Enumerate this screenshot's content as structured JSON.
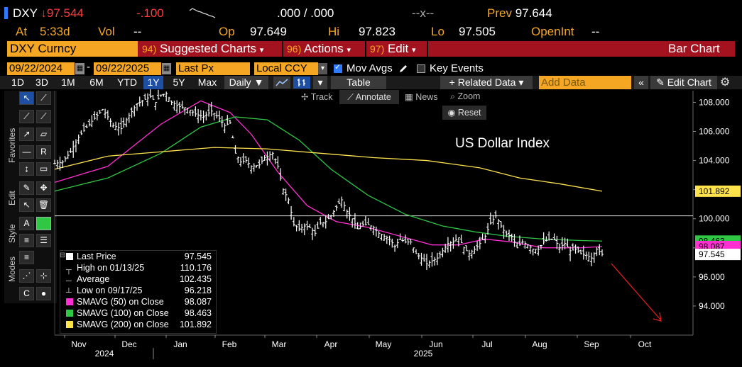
{
  "quote": {
    "ticker": "DXY",
    "arrow": "↓",
    "last": "97.544",
    "change": "-.100",
    "bid": ".000",
    "sep": "/",
    "ask": ".000",
    "size": "--x--",
    "prev_label": "Prev",
    "prev": "97.644",
    "at_label": "At",
    "time": "5:33d",
    "vol_label": "Vol",
    "vol": "--",
    "open_label": "Op",
    "open": "97.649",
    "high_label": "Hi",
    "high": "97.823",
    "low_label": "Lo",
    "low": "97.505",
    "oi_label": "OpenInt",
    "oi": "--"
  },
  "toolbar": {
    "security": "DXY Curncy",
    "suggested_num": "94)",
    "suggested": "Suggested Charts",
    "actions_num": "96)",
    "actions": "Actions",
    "edit_num": "97)",
    "edit": "Edit",
    "chart_type": "Bar Chart"
  },
  "controls": {
    "start_date": "09/22/2024",
    "end_date": "09/22/2025",
    "field": "Last Px",
    "currency": "Local CCY",
    "mov_avgs": "Mov Avgs",
    "key_events": "Key Events"
  },
  "tabs": {
    "periods": [
      "1D",
      "3D",
      "1M",
      "6M",
      "YTD",
      "1Y",
      "5Y",
      "Max"
    ],
    "selected": "1Y",
    "frequency": "Daily",
    "table": "Table",
    "related": "+ Related Data",
    "add_data_placeholder": "Add Data",
    "edit_chart": "Edit Chart"
  },
  "chart_tools": {
    "track": "Track",
    "annotate": "Annotate",
    "news": "News",
    "zoom": "Zoom",
    "reset": "Reset"
  },
  "side_labels": {
    "favorites": "Favorites",
    "edit": "Edit",
    "style": "Style",
    "modes": "Modes"
  },
  "chart_data": {
    "type": "bar",
    "title": "US Dollar Index",
    "ylim": [
      92,
      108.8
    ],
    "y_ticks": [
      "108.000",
      "106.000",
      "104.000",
      "102.000",
      "100.000",
      "98.000",
      "96.000",
      "94.000"
    ],
    "x_months": [
      "Nov",
      "Dec",
      "Jan",
      "Feb",
      "Mar",
      "Apr",
      "May",
      "Jun",
      "Jul",
      "Aug",
      "Sep",
      "Oct"
    ],
    "x_years": [
      "2024",
      "2025"
    ],
    "reference_line": 100.2,
    "price_path": [
      [
        0,
        103.8
      ],
      [
        3,
        103.9
      ],
      [
        6,
        104.6
      ],
      [
        9,
        105.6
      ],
      [
        12,
        106.3
      ],
      [
        15,
        106.9
      ],
      [
        18,
        107.5
      ],
      [
        20,
        107.0
      ],
      [
        22,
        106.4
      ],
      [
        25,
        106.2
      ],
      [
        28,
        107.1
      ],
      [
        31,
        107.9
      ],
      [
        34,
        108.2
      ],
      [
        36,
        108.4
      ],
      [
        38,
        108.0
      ],
      [
        40,
        108.5
      ],
      [
        42,
        108.6
      ],
      [
        44,
        108.0
      ],
      [
        47,
        107.7
      ],
      [
        50,
        107.6
      ],
      [
        53,
        107.2
      ],
      [
        56,
        107.0
      ],
      [
        59,
        107.4
      ],
      [
        62,
        106.9
      ],
      [
        64,
        106.4
      ],
      [
        66,
        106.6
      ],
      [
        68,
        104.5
      ],
      [
        70,
        103.9
      ],
      [
        72,
        104.0
      ],
      [
        74,
        103.6
      ],
      [
        77,
        103.7
      ],
      [
        79,
        104.2
      ],
      [
        82,
        104.5
      ],
      [
        84,
        103.6
      ],
      [
        86,
        102.0
      ],
      [
        88,
        101.3
      ],
      [
        90,
        99.6
      ],
      [
        92,
        99.3
      ],
      [
        94,
        99.5
      ],
      [
        96,
        99.4
      ],
      [
        98,
        99.0
      ],
      [
        100,
        99.7
      ],
      [
        102,
        99.8
      ],
      [
        104,
        100.2
      ],
      [
        106,
        100.8
      ],
      [
        108,
        101.3
      ],
      [
        110,
        100.5
      ],
      [
        112,
        100.0
      ],
      [
        114,
        99.3
      ],
      [
        116,
        99.6
      ],
      [
        118,
        99.6
      ],
      [
        120,
        99.4
      ],
      [
        122,
        99.0
      ],
      [
        124,
        98.8
      ],
      [
        126,
        98.6
      ],
      [
        128,
        98.1
      ],
      [
        130,
        98.6
      ],
      [
        132,
        98.4
      ],
      [
        134,
        98.4
      ],
      [
        136,
        97.6
      ],
      [
        138,
        97.3
      ],
      [
        140,
        96.9
      ],
      [
        142,
        97.1
      ],
      [
        144,
        97.3
      ],
      [
        146,
        97.8
      ],
      [
        148,
        98.3
      ],
      [
        150,
        98.4
      ],
      [
        152,
        98.7
      ],
      [
        154,
        98.0
      ],
      [
        156,
        97.6
      ],
      [
        158,
        97.9
      ],
      [
        160,
        98.3
      ],
      [
        162,
        98.8
      ],
      [
        164,
        99.7
      ],
      [
        166,
        100.2
      ],
      [
        168,
        99.5
      ],
      [
        170,
        98.9
      ],
      [
        172,
        98.8
      ],
      [
        174,
        98.0
      ],
      [
        176,
        98.4
      ],
      [
        178,
        98.2
      ],
      [
        180,
        97.9
      ],
      [
        182,
        97.9
      ],
      [
        184,
        98.4
      ],
      [
        186,
        98.6
      ],
      [
        188,
        98.6
      ],
      [
        190,
        98.0
      ],
      [
        192,
        98.3
      ],
      [
        194,
        97.8
      ],
      [
        196,
        97.9
      ],
      [
        198,
        97.6
      ],
      [
        200,
        97.5
      ],
      [
        202,
        97.3
      ],
      [
        204,
        97.9
      ],
      [
        206,
        97.55
      ]
    ],
    "series": [
      {
        "name": "SMAVG (50)  on Close",
        "color": "#ff2fd1",
        "points": [
          [
            0,
            102.5
          ],
          [
            20,
            103.6
          ],
          [
            40,
            106.5
          ],
          [
            55,
            108.1
          ],
          [
            66,
            107.3
          ],
          [
            74,
            105.8
          ],
          [
            84,
            103.2
          ],
          [
            95,
            100.9
          ],
          [
            106,
            99.8
          ],
          [
            118,
            99.4
          ],
          [
            130,
            98.8
          ],
          [
            142,
            98.2
          ],
          [
            152,
            98.2
          ],
          [
            162,
            98.6
          ],
          [
            172,
            98.4
          ],
          [
            184,
            98.0
          ],
          [
            198,
            98.0
          ],
          [
            206,
            98.087
          ]
        ]
      },
      {
        "name": "SMAVG (100)  on Close",
        "color": "#2fc744",
        "points": [
          [
            0,
            101.9
          ],
          [
            20,
            102.8
          ],
          [
            40,
            104.5
          ],
          [
            55,
            106.3
          ],
          [
            68,
            107.0
          ],
          [
            80,
            106.8
          ],
          [
            92,
            105.4
          ],
          [
            104,
            103.4
          ],
          [
            118,
            101.6
          ],
          [
            132,
            100.3
          ],
          [
            146,
            99.5
          ],
          [
            158,
            99.1
          ],
          [
            170,
            98.8
          ],
          [
            184,
            98.6
          ],
          [
            198,
            98.5
          ],
          [
            206,
            98.463
          ]
        ]
      },
      {
        "name": "SMAVG (200)  on Close",
        "color": "#ffe34c",
        "points": [
          [
            0,
            103.4
          ],
          [
            20,
            104.3
          ],
          [
            40,
            104.6
          ],
          [
            60,
            104.9
          ],
          [
            80,
            104.8
          ],
          [
            100,
            104.5
          ],
          [
            120,
            104.2
          ],
          [
            140,
            104.0
          ],
          [
            160,
            103.5
          ],
          [
            175,
            102.8
          ],
          [
            190,
            102.4
          ],
          [
            206,
            101.892
          ]
        ]
      }
    ],
    "labels": {
      "sma200": "101.892",
      "sma100": "98.463",
      "sma50": "98.087",
      "last": "97.545"
    }
  },
  "legend": {
    "last_label": "Last Price",
    "last_value": "97.545",
    "high_label": "High on 01/13/25",
    "high_value": "110.176",
    "avg_label": "Average",
    "avg_value": "102.435",
    "low_label": "Low on 09/17/25",
    "low_value": "96.218",
    "sma50_label": "SMAVG (50)  on Close",
    "sma50_value": "98.087",
    "sma100_label": "SMAVG (100)  on Close",
    "sma100_value": "98.463",
    "sma200_label": "SMAVG (200)  on Close",
    "sma200_value": "101.892"
  },
  "colors": {
    "accent_orange": "#f5a623",
    "bar_red": "#a3131f",
    "down_red": "#ff3b3b",
    "sma50": "#ff2fd1",
    "sma100": "#2fc744",
    "sma200": "#ffe34c"
  }
}
